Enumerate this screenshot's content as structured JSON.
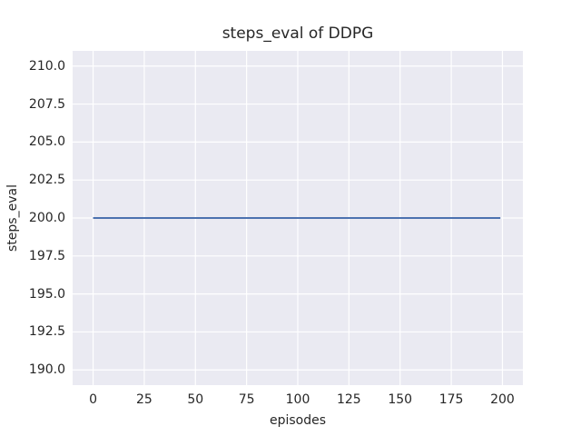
{
  "chart_data": {
    "type": "line",
    "title": "steps_eval of DDPG",
    "xlabel": "episodes",
    "ylabel": "steps_eval",
    "xlim": [
      -10,
      210
    ],
    "ylim": [
      189,
      211
    ],
    "xticks": [
      0,
      25,
      50,
      75,
      100,
      125,
      150,
      175,
      200
    ],
    "xtick_labels": [
      "0",
      "25",
      "50",
      "75",
      "100",
      "125",
      "150",
      "175",
      "200"
    ],
    "yticks": [
      190.0,
      192.5,
      195.0,
      197.5,
      200.0,
      202.5,
      205.0,
      207.5,
      210.0
    ],
    "ytick_labels": [
      "190.0",
      "192.5",
      "195.0",
      "197.5",
      "200.0",
      "202.5",
      "205.0",
      "207.5",
      "210.0"
    ],
    "grid": true,
    "legend": "none",
    "series": [
      {
        "name": "DDPG steps_eval",
        "color": "#4c72b0",
        "x": [
          0,
          199
        ],
        "y": [
          200,
          200
        ],
        "note": "constant value 200 across evaluation episodes 0 through 199"
      }
    ],
    "style": {
      "figure_bg": "#ffffff",
      "plot_bg": "#eaeaf2",
      "grid_color": "#ffffff",
      "text_color": "#262626"
    }
  }
}
